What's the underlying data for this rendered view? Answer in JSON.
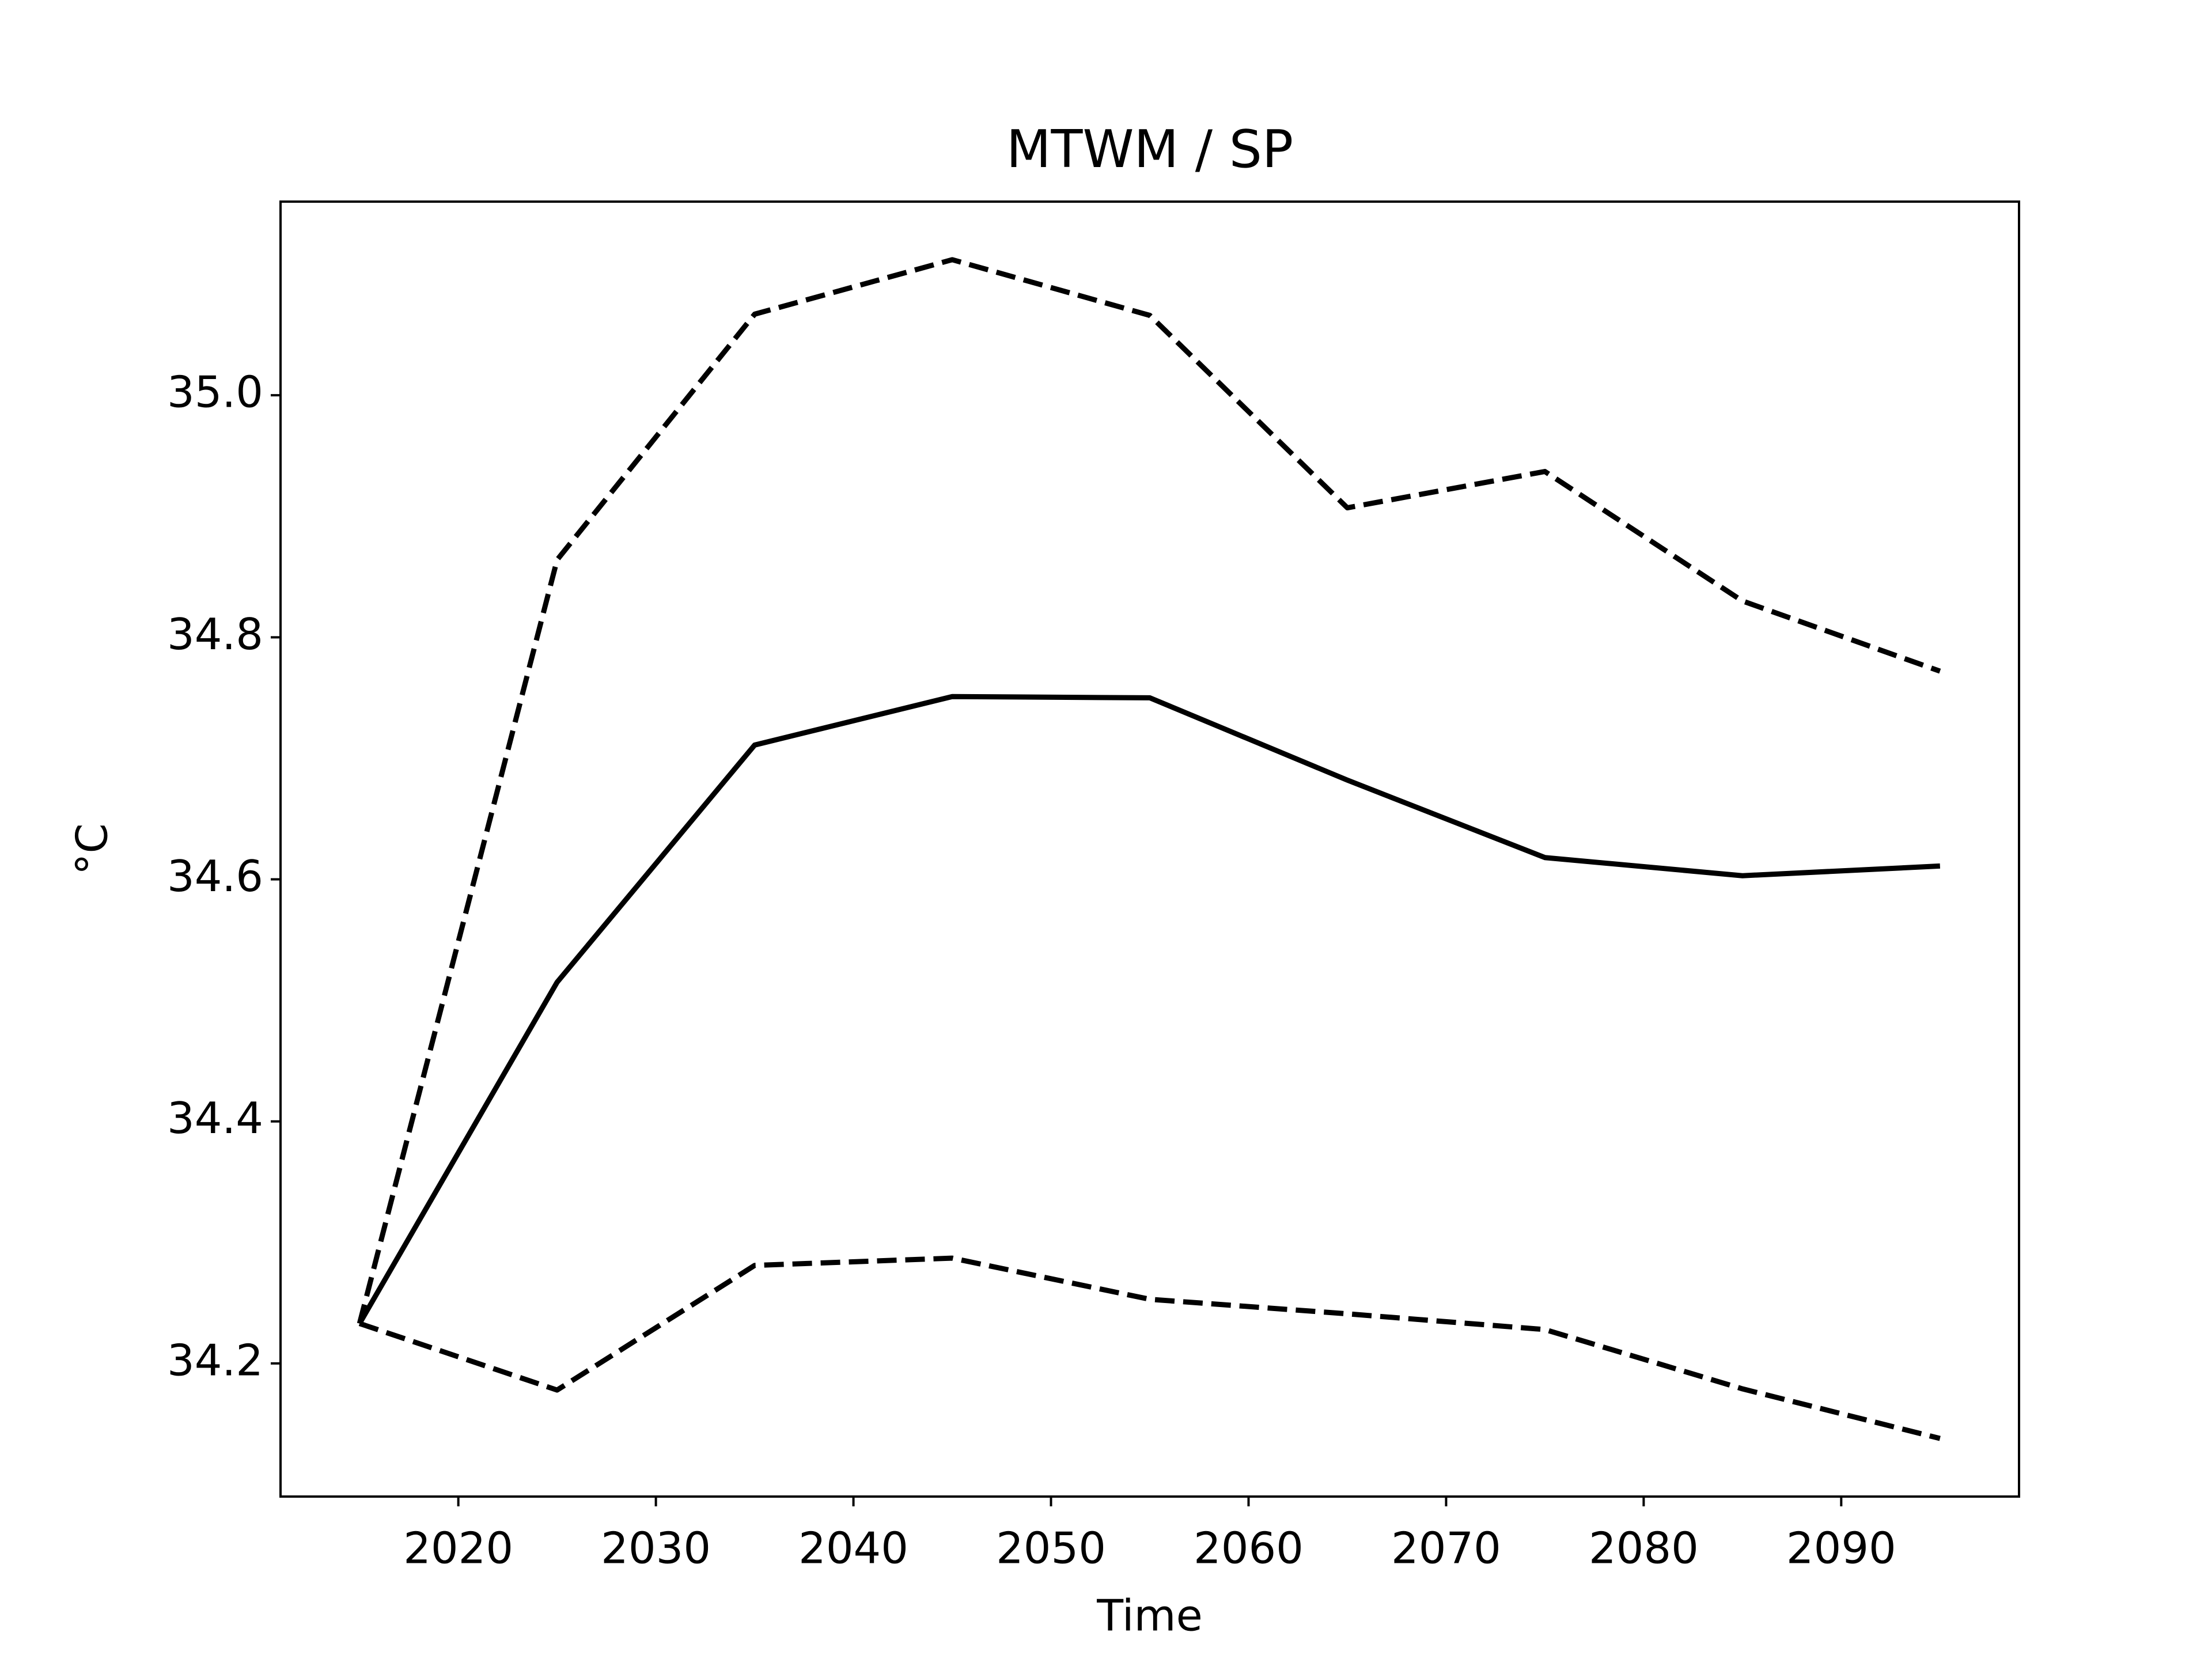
{
  "chart_data": {
    "type": "line",
    "title": "MTWM / SP",
    "xlabel": "Time",
    "ylabel": "°C",
    "x": [
      2015,
      2025,
      2035,
      2045,
      2055,
      2065,
      2075,
      2085,
      2095
    ],
    "series": [
      {
        "color": "#000000",
        "dashed": true,
        "values": [
          34.233,
          34.864,
          35.067,
          35.112,
          35.066,
          34.907,
          34.937,
          34.83,
          34.772
        ]
      },
      {
        "color": "#000000",
        "dashed": false,
        "values": [
          34.233,
          34.515,
          34.711,
          34.751,
          34.75,
          34.682,
          34.618,
          34.603,
          34.611
        ]
      },
      {
        "color": "#000000",
        "dashed": true,
        "values": [
          34.233,
          34.178,
          34.281,
          34.287,
          34.253,
          34.241,
          34.228,
          34.179,
          34.138
        ]
      }
    ],
    "xlim": [
      2011,
      2099
    ],
    "xticks": [
      2020,
      2030,
      2040,
      2050,
      2060,
      2070,
      2080,
      2090
    ],
    "ylim": [
      34.09,
      35.16
    ],
    "yticks": [
      {
        "value": 34.2,
        "label": "34.2"
      },
      {
        "value": 34.4,
        "label": "34.4"
      },
      {
        "value": 34.6,
        "label": "34.6"
      },
      {
        "value": 34.8,
        "label": "34.8"
      },
      {
        "value": 35.0,
        "label": "35.0"
      }
    ],
    "grid": false
  }
}
